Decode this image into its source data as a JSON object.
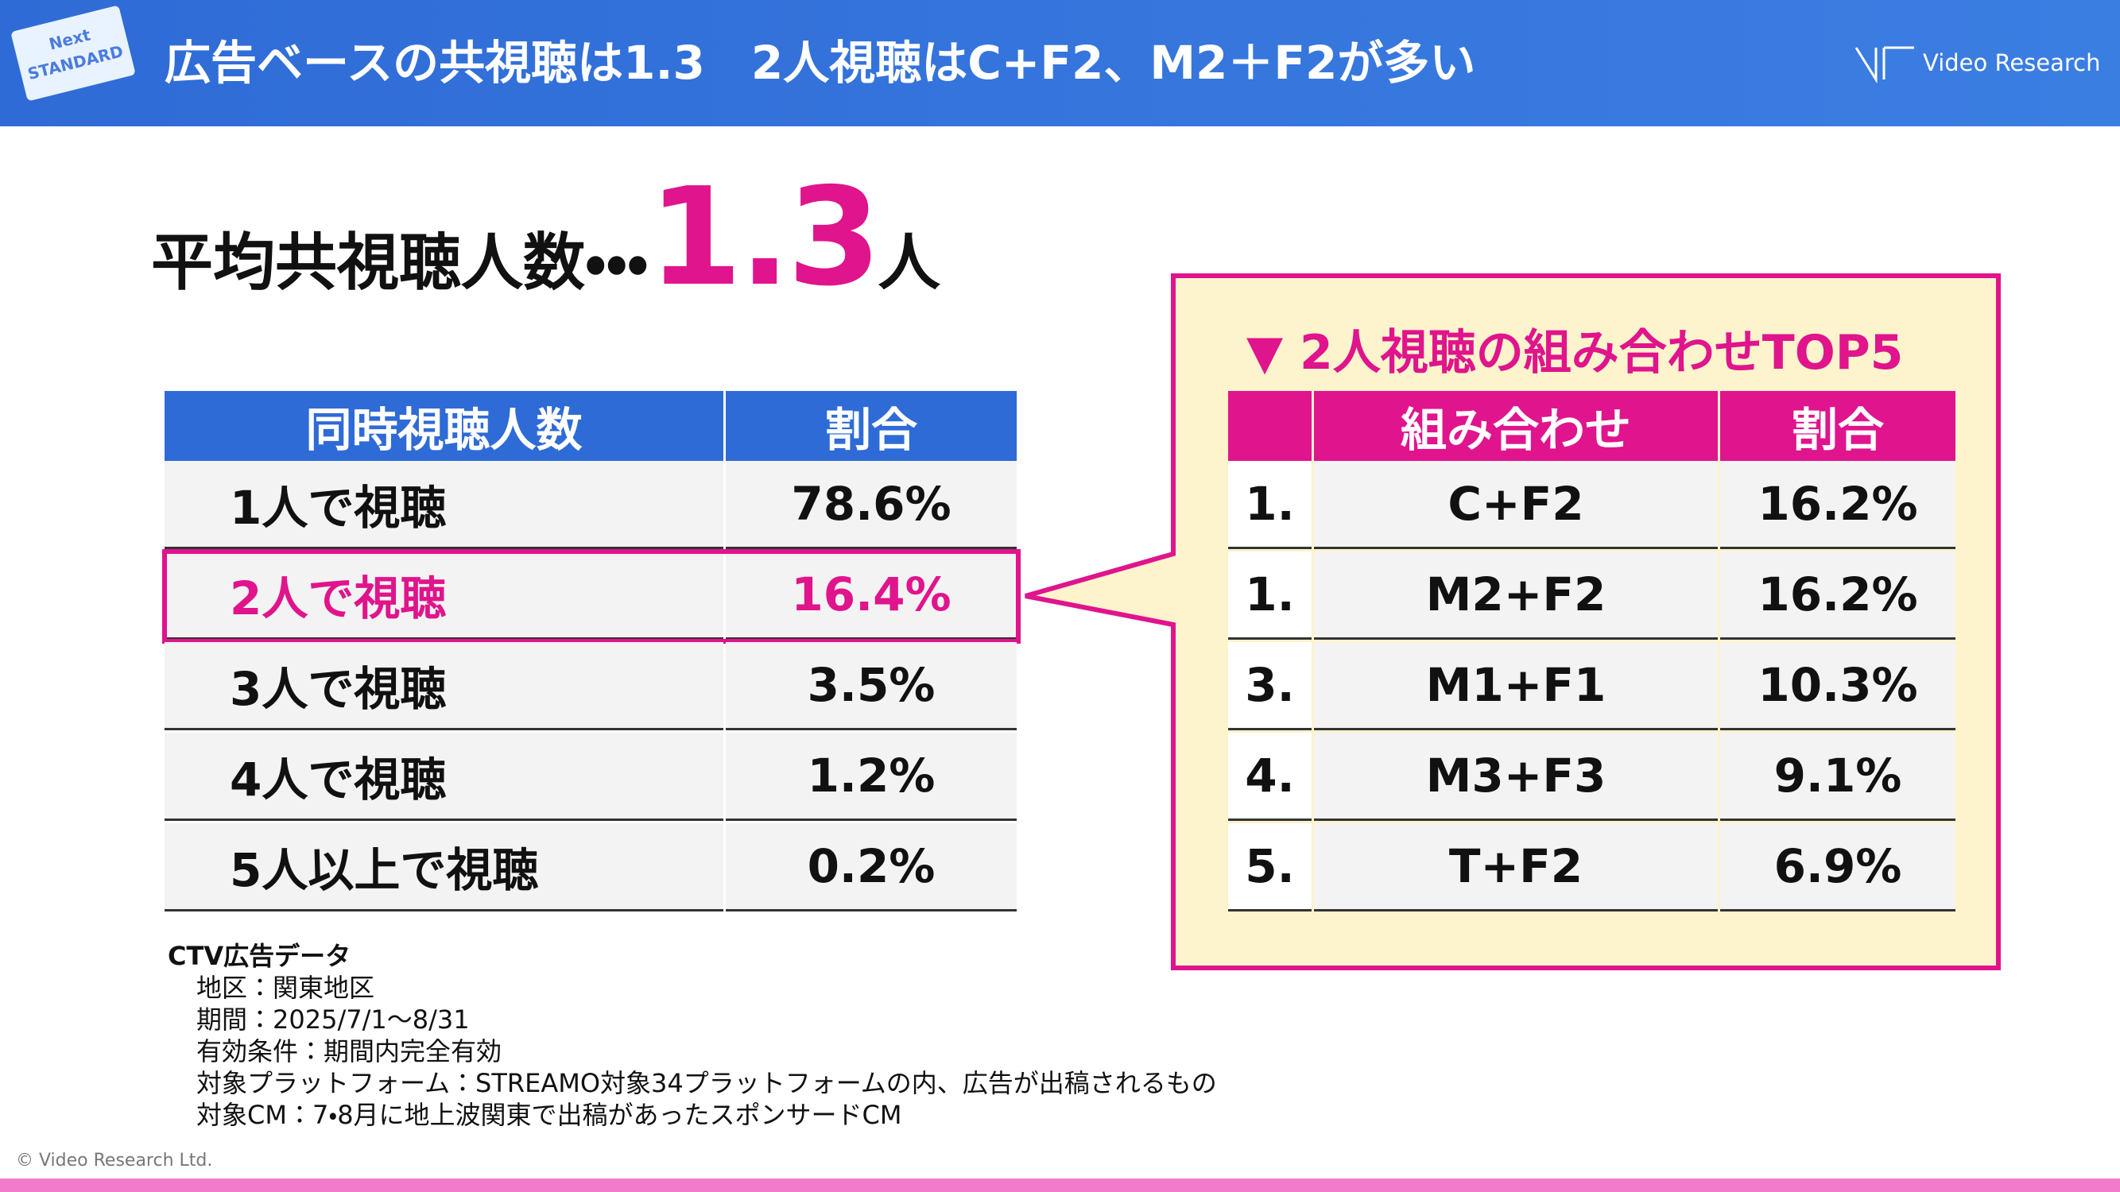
{
  "header": {
    "title": "広告ベースの共視聴は1.3　2人視聴はC+F2、M2＋F2が多い",
    "logo": "Video Research",
    "badge": [
      "Next",
      "STANDARD"
    ]
  },
  "summary": {
    "label": "平均共視聴人数・・・",
    "value": "1.3",
    "unit": "人"
  },
  "table1": {
    "headers": [
      "同時視聴人数",
      "割合"
    ],
    "highlight_row": 1,
    "rows": [
      [
        "1人で視聴",
        "78.6%"
      ],
      [
        "2人で視聴",
        "16.4%"
      ],
      [
        "3人で視聴",
        "3.5%"
      ],
      [
        "4人で視聴",
        "1.2%"
      ],
      [
        "5人以上で視聴",
        "0.2%"
      ]
    ]
  },
  "table2": {
    "title": "▼ 2人視聴の組み合わせTOP5",
    "headers": [
      "組み合わせ",
      "割合"
    ],
    "rows": [
      [
        "1.",
        "C+F2",
        "16.2%"
      ],
      [
        "1.",
        "M2+F2",
        "16.2%"
      ],
      [
        "3.",
        "M1+F1",
        "10.3%"
      ],
      [
        "4.",
        "M3+F3",
        "9.1%"
      ],
      [
        "5.",
        "T+F2",
        "6.9%"
      ]
    ]
  },
  "notes": {
    "title": "CTV広告データ",
    "lines": [
      "地区：関東地区",
      "期間：2025/7/1～8/31",
      "有効条件：期間内完全有効",
      "対象プラットフォーム：STREAMO対象34プラットフォームの内、広告が出稿されるもの",
      "対象CM：7・8月に地上波関東で出稿があったスポンサードCM"
    ]
  },
  "copyright": "© Video Research Ltd."
}
